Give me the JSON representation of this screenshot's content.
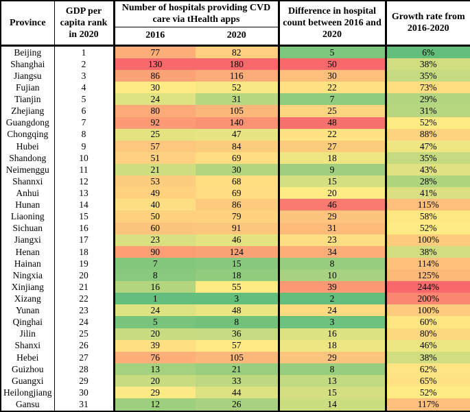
{
  "chart_data": {
    "type": "table",
    "title": "Number of hospitals providing CVD care via tHealth apps by province, 2016 vs 2020 (heatmap table)",
    "columns": {
      "province": "Province",
      "rank": "GDP per capita rank in 2020",
      "hospitals_group": "Number of  hospitals providing CVD care via tHealth apps",
      "y2016": "2016",
      "y2020": "2020",
      "diff": "Difference in hospital count between 2016 and 2020",
      "growth": "Growth rate from 2016-2020"
    },
    "heatmap": {
      "description": "3-color scale applied per column, midpoint at column median",
      "min_color": "#63BE7B",
      "mid_color": "#FFEB84",
      "max_color": "#F8696B",
      "text_color": "#000000",
      "border_color": "#000000"
    },
    "rows": [
      {
        "province": "Beijing",
        "rank": 1,
        "h2016": 77,
        "h2020": 82,
        "diff": 5,
        "growth": "6%"
      },
      {
        "province": "Shanghai",
        "rank": 2,
        "h2016": 130,
        "h2020": 180,
        "diff": 50,
        "growth": "38%"
      },
      {
        "province": "Jiangsu",
        "rank": 3,
        "h2016": 86,
        "h2020": 116,
        "diff": 30,
        "growth": "35%"
      },
      {
        "province": "Fujian",
        "rank": 4,
        "h2016": 30,
        "h2020": 52,
        "diff": 22,
        "growth": "73%"
      },
      {
        "province": "Tianjin",
        "rank": 5,
        "h2016": 24,
        "h2020": 31,
        "diff": 7,
        "growth": "29%"
      },
      {
        "province": "Zhejiang",
        "rank": 6,
        "h2016": 80,
        "h2020": 105,
        "diff": 25,
        "growth": "31%"
      },
      {
        "province": "Guangdong",
        "rank": 7,
        "h2016": 92,
        "h2020": 140,
        "diff": 48,
        "growth": "52%"
      },
      {
        "province": "Chongqing",
        "rank": 8,
        "h2016": 25,
        "h2020": 47,
        "diff": 22,
        "growth": "88%"
      },
      {
        "province": "Hubei",
        "rank": 9,
        "h2016": 57,
        "h2020": 84,
        "diff": 27,
        "growth": "47%"
      },
      {
        "province": "Shandong",
        "rank": 10,
        "h2016": 51,
        "h2020": 69,
        "diff": 18,
        "growth": "35%"
      },
      {
        "province": "Neimenggu",
        "rank": 11,
        "h2016": 21,
        "h2020": 30,
        "diff": 9,
        "growth": "43%"
      },
      {
        "province": "Shannxi",
        "rank": 12,
        "h2016": 53,
        "h2020": 68,
        "diff": 15,
        "growth": "28%"
      },
      {
        "province": "Anhui",
        "rank": 13,
        "h2016": 49,
        "h2020": 69,
        "diff": 20,
        "growth": "41%"
      },
      {
        "province": "Hunan",
        "rank": 14,
        "h2016": 40,
        "h2020": 86,
        "diff": 46,
        "growth": "115%"
      },
      {
        "province": "Liaoning",
        "rank": 15,
        "h2016": 50,
        "h2020": 79,
        "diff": 29,
        "growth": "58%"
      },
      {
        "province": "Sichuan",
        "rank": 16,
        "h2016": 60,
        "h2020": 91,
        "diff": 31,
        "growth": "52%"
      },
      {
        "province": "Jiangxi",
        "rank": 17,
        "h2016": 23,
        "h2020": 46,
        "diff": 23,
        "growth": "100%"
      },
      {
        "province": "Henan",
        "rank": 18,
        "h2016": 90,
        "h2020": 124,
        "diff": 34,
        "growth": "38%"
      },
      {
        "province": "Hainan",
        "rank": 19,
        "h2016": 7,
        "h2020": 15,
        "diff": 8,
        "growth": "114%"
      },
      {
        "province": "Ningxia",
        "rank": 20,
        "h2016": 8,
        "h2020": 18,
        "diff": 10,
        "growth": "125%"
      },
      {
        "province": "Xinjiang",
        "rank": 21,
        "h2016": 16,
        "h2020": 55,
        "diff": 39,
        "growth": "244%"
      },
      {
        "province": "Xizang",
        "rank": 22,
        "h2016": 1,
        "h2020": 3,
        "diff": 2,
        "growth": "200%"
      },
      {
        "province": "Yunan",
        "rank": 23,
        "h2016": 24,
        "h2020": 48,
        "diff": 24,
        "growth": "100%"
      },
      {
        "province": "Qinghai",
        "rank": 24,
        "h2016": 5,
        "h2020": 8,
        "diff": 3,
        "growth": "60%"
      },
      {
        "province": "Jilin",
        "rank": 25,
        "h2016": 20,
        "h2020": 36,
        "diff": 16,
        "growth": "80%"
      },
      {
        "province": "Shanxi",
        "rank": 26,
        "h2016": 39,
        "h2020": 57,
        "diff": 18,
        "growth": "46%"
      },
      {
        "province": "Hebei",
        "rank": 27,
        "h2016": 76,
        "h2020": 105,
        "diff": 29,
        "growth": "38%"
      },
      {
        "province": "Guizhou",
        "rank": 28,
        "h2016": 13,
        "h2020": 21,
        "diff": 8,
        "growth": "62%"
      },
      {
        "province": "Guangxi",
        "rank": 29,
        "h2016": 20,
        "h2020": 33,
        "diff": 13,
        "growth": "65%"
      },
      {
        "province": "Heilongjiang",
        "rank": 30,
        "h2016": 29,
        "h2020": 44,
        "diff": 15,
        "growth": "52%"
      },
      {
        "province": "Gansu",
        "rank": 31,
        "h2016": 12,
        "h2020": 26,
        "diff": 14,
        "growth": "117%"
      }
    ]
  }
}
